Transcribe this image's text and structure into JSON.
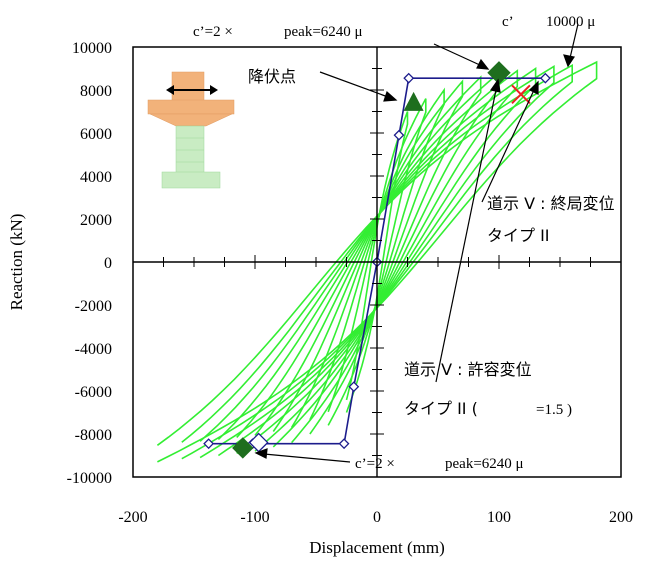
{
  "chart_data": {
    "type": "line",
    "xlabel": "Displacement (mm)",
    "ylabel": "Reaction (kN)",
    "xlim": [
      -200,
      200
    ],
    "ylim": [
      -10000,
      10000
    ],
    "xticks": [
      -200,
      -100,
      0,
      100,
      200
    ],
    "yticks": [
      10000,
      8000,
      6000,
      4000,
      2000,
      0,
      -2000,
      -4000,
      -6000,
      -8000,
      -10000
    ],
    "grid": false,
    "colors": {
      "hysteresis": "#33ee33",
      "skeleton": "#1c1c8c",
      "peak_marker": "#1e6e1e",
      "yield_marker": "#1e6e1e",
      "ultimate_marker": "#ee2020"
    },
    "skeleton_points": [
      [
        -138,
        -8450
      ],
      [
        -102,
        -8450
      ],
      [
        -27,
        -8450
      ],
      [
        -19,
        -5800
      ],
      [
        0,
        0
      ],
      [
        18,
        5900
      ],
      [
        26,
        8550
      ],
      [
        100,
        8550
      ],
      [
        138,
        8550
      ]
    ],
    "hysteresis_amplitudes": [
      [
        25,
        7000
      ],
      [
        40,
        7600
      ],
      [
        55,
        8000
      ],
      [
        70,
        8400
      ],
      [
        85,
        8600
      ],
      [
        100,
        8800
      ],
      [
        115,
        8900
      ],
      [
        130,
        9000
      ],
      [
        145,
        9100
      ],
      [
        160,
        9150
      ],
      [
        180,
        9300
      ]
    ],
    "peak_point_positive": [
      100,
      8800
    ],
    "peak_point_negative": [
      -110,
      -8650
    ],
    "yield_point": [
      30,
      7400
    ],
    "ultimate_point": [
      118,
      7800
    ],
    "annotations": {
      "c2_top": "c’=2 ×",
      "peak_top": "peak=6240 μ",
      "c_prime": "c’",
      "strain_10000": "10000 μ",
      "yield_label": "降伏点",
      "ultimate_line1": "道示 V : 終局変位",
      "ultimate_line2": "タイプ II",
      "allow_line1": "道示 V : 許容変位",
      "allow_line2": "タイプ II (",
      "allow_alpha": "=1.5 )",
      "c2_bottom": "c’=2 ×",
      "peak_bottom": "peak=6240 μ"
    }
  }
}
